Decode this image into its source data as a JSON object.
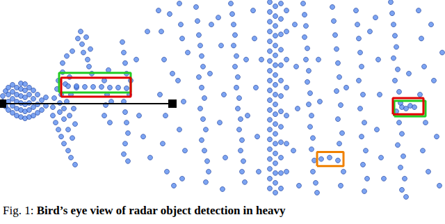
{
  "chart_data": {
    "type": "scatter",
    "tick_labels": false,
    "grid": false,
    "xlim": [
      0,
      640
    ],
    "ylim": [
      0,
      285
    ],
    "color": "#5b8def",
    "marker": "circle",
    "points": [
      [
        4,
        140
      ],
      [
        4,
        148
      ],
      [
        8,
        133
      ],
      [
        8,
        155
      ],
      [
        12,
        128
      ],
      [
        12,
        140
      ],
      [
        12,
        150
      ],
      [
        12,
        160
      ],
      [
        18,
        124
      ],
      [
        18,
        134
      ],
      [
        18,
        144
      ],
      [
        18,
        154
      ],
      [
        18,
        164
      ],
      [
        24,
        120
      ],
      [
        24,
        130
      ],
      [
        24,
        140
      ],
      [
        24,
        150
      ],
      [
        24,
        160
      ],
      [
        30,
        118
      ],
      [
        30,
        128
      ],
      [
        30,
        138
      ],
      [
        30,
        148
      ],
      [
        30,
        158
      ],
      [
        30,
        166
      ],
      [
        36,
        116
      ],
      [
        36,
        126
      ],
      [
        36,
        136
      ],
      [
        36,
        146
      ],
      [
        36,
        156
      ],
      [
        36,
        165
      ],
      [
        42,
        118
      ],
      [
        42,
        128
      ],
      [
        42,
        138
      ],
      [
        42,
        150
      ],
      [
        42,
        160
      ],
      [
        48,
        120
      ],
      [
        48,
        132
      ],
      [
        48,
        144
      ],
      [
        48,
        156
      ],
      [
        54,
        124
      ],
      [
        54,
        136
      ],
      [
        54,
        150
      ],
      [
        60,
        128
      ],
      [
        60,
        142
      ],
      [
        66,
        134
      ],
      [
        66,
        146
      ],
      [
        76,
        120
      ],
      [
        76,
        132
      ],
      [
        78,
        145
      ],
      [
        80,
        110
      ],
      [
        82,
        158
      ],
      [
        84,
        100
      ],
      [
        84,
        170
      ],
      [
        86,
        125
      ],
      [
        86,
        138
      ],
      [
        88,
        90
      ],
      [
        88,
        150
      ],
      [
        90,
        182
      ],
      [
        90,
        195
      ],
      [
        92,
        115
      ],
      [
        92,
        130
      ],
      [
        92,
        80
      ],
      [
        94,
        165
      ],
      [
        96,
        205
      ],
      [
        96,
        140
      ],
      [
        98,
        100
      ],
      [
        98,
        70
      ],
      [
        100,
        120
      ],
      [
        100,
        175
      ],
      [
        102,
        60
      ],
      [
        102,
        150
      ],
      [
        104,
        212
      ],
      [
        104,
        88
      ],
      [
        106,
        130
      ],
      [
        108,
        108
      ],
      [
        108,
        50
      ],
      [
        110,
        160
      ],
      [
        112,
        230
      ],
      [
        116,
        240
      ],
      [
        118,
        222
      ],
      [
        120,
        210
      ],
      [
        124,
        232
      ],
      [
        126,
        200
      ],
      [
        128,
        190
      ],
      [
        130,
        215
      ],
      [
        132,
        180
      ],
      [
        98,
        162
      ],
      [
        110,
        162
      ],
      [
        122,
        161
      ],
      [
        134,
        161
      ],
      [
        146,
        161
      ],
      [
        158,
        160
      ],
      [
        170,
        160
      ],
      [
        182,
        159
      ],
      [
        150,
        120
      ],
      [
        152,
        135
      ],
      [
        154,
        150
      ],
      [
        150,
        170
      ],
      [
        156,
        185
      ],
      [
        158,
        110
      ],
      [
        160,
        140
      ],
      [
        176,
        225
      ],
      [
        178,
        210
      ],
      [
        180,
        195
      ],
      [
        182,
        180
      ],
      [
        178,
        140
      ],
      [
        180,
        125
      ],
      [
        182,
        110
      ],
      [
        184,
        95
      ],
      [
        180,
        80
      ],
      [
        178,
        65
      ],
      [
        184,
        55
      ],
      [
        186,
        150
      ],
      [
        188,
        170
      ],
      [
        196,
        200
      ],
      [
        200,
        120
      ],
      [
        206,
        90
      ],
      [
        212,
        240
      ],
      [
        216,
        60
      ],
      [
        228,
        270
      ],
      [
        232,
        240
      ],
      [
        236,
        200
      ],
      [
        230,
        150
      ],
      [
        238,
        120
      ],
      [
        234,
        80
      ],
      [
        240,
        40
      ],
      [
        244,
        265
      ],
      [
        248,
        180
      ],
      [
        250,
        20
      ],
      [
        258,
        280
      ],
      [
        260,
        250
      ],
      [
        262,
        230
      ],
      [
        256,
        170
      ],
      [
        264,
        140
      ],
      [
        258,
        100
      ],
      [
        266,
        70
      ],
      [
        262,
        30
      ],
      [
        270,
        210
      ],
      [
        282,
        275
      ],
      [
        284,
        255
      ],
      [
        286,
        235
      ],
      [
        288,
        220
      ],
      [
        290,
        205
      ],
      [
        292,
        190
      ],
      [
        286,
        175
      ],
      [
        290,
        160
      ],
      [
        294,
        145
      ],
      [
        288,
        130
      ],
      [
        292,
        115
      ],
      [
        296,
        100
      ],
      [
        290,
        85
      ],
      [
        294,
        70
      ],
      [
        298,
        55
      ],
      [
        300,
        40
      ],
      [
        296,
        25
      ],
      [
        302,
        180
      ],
      [
        304,
        250
      ],
      [
        314,
        260
      ],
      [
        318,
        220
      ],
      [
        322,
        150
      ],
      [
        316,
        110
      ],
      [
        324,
        60
      ],
      [
        320,
        15
      ],
      [
        332,
        280
      ],
      [
        334,
        265
      ],
      [
        336,
        250
      ],
      [
        338,
        235
      ],
      [
        336,
        220
      ],
      [
        340,
        205
      ],
      [
        338,
        190
      ],
      [
        342,
        175
      ],
      [
        340,
        160
      ],
      [
        344,
        145
      ],
      [
        342,
        130
      ],
      [
        346,
        115
      ],
      [
        344,
        100
      ],
      [
        348,
        85
      ],
      [
        346,
        70
      ],
      [
        350,
        55
      ],
      [
        348,
        40
      ],
      [
        352,
        25
      ],
      [
        354,
        200
      ],
      [
        356,
        120
      ],
      [
        364,
        270
      ],
      [
        366,
        230
      ],
      [
        368,
        160
      ],
      [
        370,
        90
      ],
      [
        372,
        40
      ],
      [
        376,
        200
      ],
      [
        388,
        282
      ],
      [
        388,
        268
      ],
      [
        388,
        254
      ],
      [
        388,
        240
      ],
      [
        388,
        226
      ],
      [
        388,
        212
      ],
      [
        388,
        198
      ],
      [
        388,
        184
      ],
      [
        388,
        170
      ],
      [
        388,
        156
      ],
      [
        388,
        142
      ],
      [
        388,
        128
      ],
      [
        388,
        114
      ],
      [
        388,
        100
      ],
      [
        388,
        86
      ],
      [
        388,
        72
      ],
      [
        388,
        58
      ],
      [
        388,
        44
      ],
      [
        388,
        30
      ],
      [
        388,
        16
      ],
      [
        396,
        276
      ],
      [
        396,
        262
      ],
      [
        396,
        248
      ],
      [
        396,
        234
      ],
      [
        396,
        220
      ],
      [
        396,
        206
      ],
      [
        396,
        192
      ],
      [
        396,
        178
      ],
      [
        396,
        164
      ],
      [
        396,
        150
      ],
      [
        396,
        136
      ],
      [
        396,
        122
      ],
      [
        396,
        108
      ],
      [
        396,
        94
      ],
      [
        396,
        80
      ],
      [
        396,
        66
      ],
      [
        396,
        52
      ],
      [
        396,
        38
      ],
      [
        396,
        24
      ],
      [
        396,
        10
      ],
      [
        404,
        280
      ],
      [
        404,
        258
      ],
      [
        404,
        236
      ],
      [
        404,
        214
      ],
      [
        404,
        192
      ],
      [
        404,
        170
      ],
      [
        404,
        148
      ],
      [
        404,
        126
      ],
      [
        404,
        104
      ],
      [
        404,
        82
      ],
      [
        404,
        60
      ],
      [
        404,
        38
      ],
      [
        404,
        16
      ],
      [
        412,
        270
      ],
      [
        412,
        240
      ],
      [
        412,
        200
      ],
      [
        412,
        160
      ],
      [
        412,
        120
      ],
      [
        412,
        80
      ],
      [
        412,
        40
      ],
      [
        424,
        250
      ],
      [
        426,
        190
      ],
      [
        428,
        130
      ],
      [
        422,
        70
      ],
      [
        430,
        20
      ],
      [
        436,
        280
      ],
      [
        438,
        264
      ],
      [
        440,
        248
      ],
      [
        438,
        232
      ],
      [
        442,
        216
      ],
      [
        440,
        200
      ],
      [
        444,
        184
      ],
      [
        442,
        168
      ],
      [
        446,
        152
      ],
      [
        444,
        136
      ],
      [
        448,
        120
      ],
      [
        446,
        104
      ],
      [
        450,
        88
      ],
      [
        448,
        72
      ],
      [
        452,
        56
      ],
      [
        450,
        40
      ],
      [
        454,
        24
      ],
      [
        456,
        10
      ],
      [
        458,
        200
      ],
      [
        460,
        140
      ],
      [
        462,
        58
      ],
      [
        474,
        60
      ],
      [
        486,
        56
      ],
      [
        478,
        275
      ],
      [
        480,
        255
      ],
      [
        482,
        235
      ],
      [
        484,
        215
      ],
      [
        486,
        195
      ],
      [
        488,
        175
      ],
      [
        484,
        155
      ],
      [
        490,
        135
      ],
      [
        486,
        115
      ],
      [
        492,
        95
      ],
      [
        488,
        80
      ],
      [
        494,
        40
      ],
      [
        490,
        20
      ],
      [
        498,
        160
      ],
      [
        512,
        270
      ],
      [
        514,
        250
      ],
      [
        516,
        230
      ],
      [
        518,
        210
      ],
      [
        520,
        190
      ],
      [
        516,
        170
      ],
      [
        522,
        150
      ],
      [
        518,
        130
      ],
      [
        524,
        110
      ],
      [
        520,
        90
      ],
      [
        526,
        70
      ],
      [
        522,
        50
      ],
      [
        528,
        30
      ],
      [
        524,
        12
      ],
      [
        532,
        240
      ],
      [
        540,
        260
      ],
      [
        544,
        200
      ],
      [
        546,
        150
      ],
      [
        542,
        100
      ],
      [
        548,
        60
      ],
      [
        552,
        30
      ],
      [
        562,
        282
      ],
      [
        564,
        266
      ],
      [
        566,
        250
      ],
      [
        568,
        234
      ],
      [
        570,
        218
      ],
      [
        566,
        202
      ],
      [
        572,
        186
      ],
      [
        568,
        170
      ],
      [
        574,
        154
      ],
      [
        576,
        138
      ],
      [
        570,
        126
      ],
      [
        578,
        132
      ],
      [
        584,
        130
      ],
      [
        590,
        134
      ],
      [
        596,
        132
      ],
      [
        574,
        110
      ],
      [
        578,
        94
      ],
      [
        572,
        78
      ],
      [
        580,
        62
      ],
      [
        576,
        46
      ],
      [
        582,
        30
      ],
      [
        578,
        14
      ],
      [
        584,
        4
      ],
      [
        588,
        180
      ],
      [
        602,
        270
      ],
      [
        606,
        230
      ],
      [
        610,
        190
      ],
      [
        604,
        150
      ],
      [
        612,
        110
      ],
      [
        608,
        70
      ],
      [
        616,
        40
      ],
      [
        620,
        250
      ],
      [
        624,
        170
      ],
      [
        628,
        90
      ],
      [
        632,
        20
      ],
      [
        636,
        210
      ]
    ],
    "boxes": [
      {
        "color": "#22cc22",
        "x": [
          85,
          188
        ],
        "y": [
          153,
          181
        ]
      },
      {
        "color": "#e00000",
        "x": [
          88,
          188
        ],
        "y": [
          147,
          174
        ]
      },
      {
        "color": "#22cc22",
        "x": [
          567,
          612
        ],
        "y": [
          119,
          141
        ]
      },
      {
        "color": "#e00000",
        "x": [
          565,
          609
        ],
        "y": [
          122,
          145
        ]
      },
      {
        "color": "#f08000",
        "x": [
          456,
          494
        ],
        "y": [
          48,
          68
        ]
      }
    ],
    "arrow": {
      "color": "#000000",
      "x": [
        3,
        248
      ],
      "y": [
        137,
        137
      ]
    },
    "caption": {
      "label": "Fig. 1:",
      "text": "Bird’s eye view of radar object detection in heavy"
    }
  }
}
